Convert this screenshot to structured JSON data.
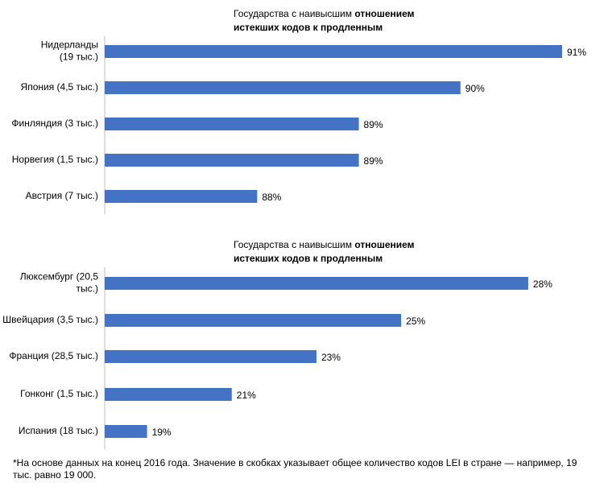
{
  "chart_data": [
    {
      "type": "bar",
      "orientation": "horizontal",
      "title_lines": [
        [
          {
            "text": "Государства с наивысшим ",
            "bold": false
          },
          {
            "text": "отношением",
            "bold": true
          }
        ],
        [
          {
            "text": "истекших кодов к продленным",
            "bold": true
          }
        ]
      ],
      "categories": [
        [
          "Нидерланды",
          "(19 тыс.)"
        ],
        [
          "Япония (4,5 тыс.)"
        ],
        [
          "Финляндия (3 тыс.)"
        ],
        [
          "Норвегия (1,5 тыс.)"
        ],
        [
          "Австрия (7 тыс.)"
        ]
      ],
      "values": [
        91,
        90,
        89,
        89,
        88
      ],
      "value_labels": [
        "91%",
        "90%",
        "89%",
        "89%",
        "88%"
      ],
      "color": "#4472c4",
      "xlim": [
        86.5,
        91
      ]
    },
    {
      "type": "bar",
      "orientation": "horizontal",
      "title_lines": [
        [
          {
            "text": "Государства с наивысшим ",
            "bold": false
          },
          {
            "text": "отношением",
            "bold": true
          }
        ],
        [
          {
            "text": "истекших кодов к продленным",
            "bold": true
          }
        ]
      ],
      "categories": [
        [
          "Люксембург (20,5",
          "тыс.)"
        ],
        [
          "Швейцария (3,5 тыс.)"
        ],
        [
          "Франция (28,5 тыс.)"
        ],
        [
          "Гонконг (1,5 тыс.)"
        ],
        [
          "Испания (18 тыс.)"
        ]
      ],
      "values": [
        28,
        25,
        23,
        21,
        19
      ],
      "value_labels": [
        "28%",
        "25%",
        "23%",
        "21%",
        "19%"
      ],
      "color": "#4472c4",
      "xlim": [
        18,
        28.8
      ]
    }
  ],
  "footnote": [
    "*На основе данных на конец 2016 года. Значение в скобках указывает общее количество кодов LEI в стране — например, 19",
    "тыс. равно 19 000."
  ]
}
